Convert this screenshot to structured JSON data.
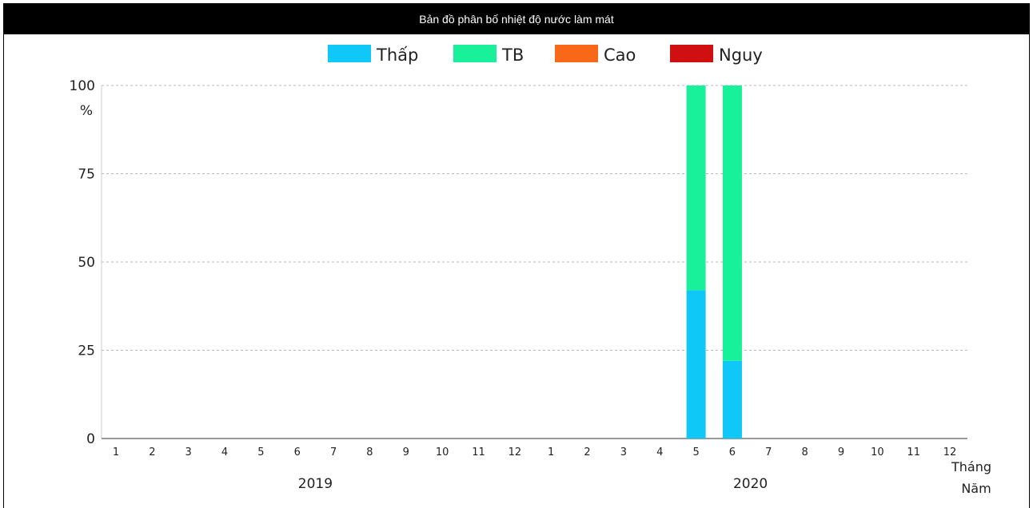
{
  "window": {
    "title": "Bản đồ phân bố nhiệt độ nước làm mát"
  },
  "chart_data": {
    "type": "bar",
    "stacked": true,
    "title": "Bản đồ phân bố nhiệt độ nước làm mát",
    "ylabel": "%",
    "xlabel_lines": [
      "Tháng",
      "Năm"
    ],
    "ylim": [
      0,
      100
    ],
    "yticks": [
      0,
      25,
      50,
      75,
      100
    ],
    "grid": true,
    "legend_position": "top-center",
    "groups": [
      {
        "label": "2019",
        "months": [
          "1",
          "2",
          "3",
          "4",
          "5",
          "6",
          "7",
          "8",
          "9",
          "10",
          "11",
          "12"
        ]
      },
      {
        "label": "2020",
        "months": [
          "1",
          "2",
          "3",
          "4",
          "5",
          "6",
          "7",
          "8",
          "9",
          "10",
          "11",
          "12"
        ]
      }
    ],
    "series": [
      {
        "name": "Thấp",
        "color": "#10c8f8",
        "values": [
          0,
          0,
          0,
          0,
          0,
          0,
          0,
          0,
          0,
          0,
          0,
          0,
          0,
          0,
          0,
          0,
          42,
          22,
          0,
          0,
          0,
          0,
          0,
          0
        ]
      },
      {
        "name": "TB",
        "color": "#18f09a",
        "values": [
          0,
          0,
          0,
          0,
          0,
          0,
          0,
          0,
          0,
          0,
          0,
          0,
          0,
          0,
          0,
          0,
          58,
          78,
          0,
          0,
          0,
          0,
          0,
          0
        ]
      },
      {
        "name": "Cao",
        "color": "#f86818",
        "values": [
          0,
          0,
          0,
          0,
          0,
          0,
          0,
          0,
          0,
          0,
          0,
          0,
          0,
          0,
          0,
          0,
          0,
          0,
          0,
          0,
          0,
          0,
          0,
          0
        ]
      },
      {
        "name": "Nguy",
        "color": "#d01010",
        "values": [
          0,
          0,
          0,
          0,
          0,
          0,
          0,
          0,
          0,
          0,
          0,
          0,
          0,
          0,
          0,
          0,
          0,
          0,
          0,
          0,
          0,
          0,
          0,
          0
        ]
      }
    ]
  }
}
